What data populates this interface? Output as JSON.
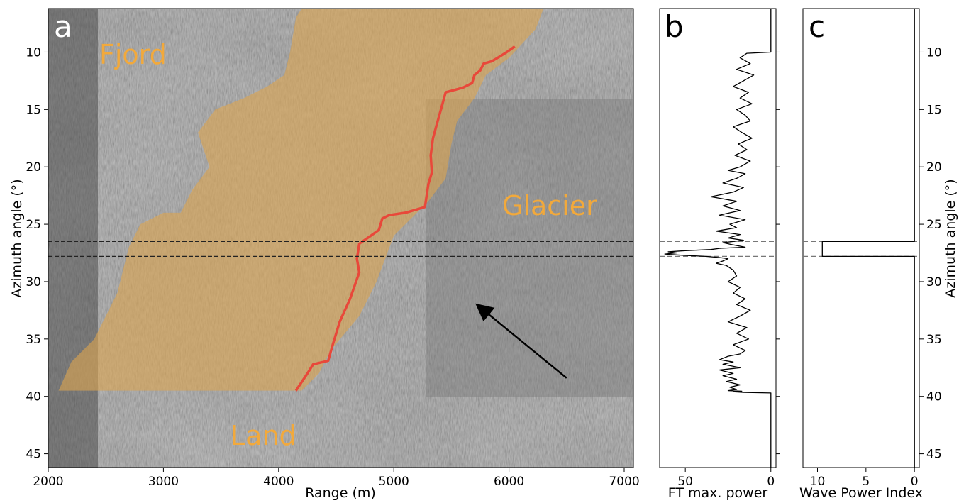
{
  "chart_data": [
    {
      "panel": "a",
      "type": "image",
      "xlabel": "Range (m)",
      "ylabel": "Azimuth angle (°)",
      "xlim": [
        2000,
        7080
      ],
      "ylim": [
        46.2,
        6.2
      ],
      "xticks": [
        2000,
        3000,
        4000,
        5000,
        6000,
        7000
      ],
      "yticks": [
        10,
        15,
        20,
        25,
        30,
        35,
        40,
        45
      ],
      "region_labels": [
        "Fjord",
        "Glacier",
        "Land"
      ],
      "colors": {
        "shading": "#dca450",
        "terminus": "#e8483a",
        "label": "#f2a93b"
      },
      "fjord_region": [
        [
          2090,
          39.5
        ],
        [
          2200,
          37.0
        ],
        [
          2400,
          35.0
        ],
        [
          2600,
          31.0
        ],
        [
          2700,
          27.0
        ],
        [
          2800,
          25.0
        ],
        [
          3000,
          24.0
        ],
        [
          3150,
          24.0
        ],
        [
          3250,
          22.0
        ],
        [
          3400,
          20.0
        ],
        [
          3300,
          17.0
        ],
        [
          3450,
          15.0
        ],
        [
          3700,
          14.0
        ],
        [
          3900,
          13.0
        ],
        [
          4050,
          12.0
        ],
        [
          4100,
          10.0
        ],
        [
          4150,
          7.0
        ],
        [
          4200,
          6.2
        ],
        [
          6300,
          6.2
        ],
        [
          6230,
          8.0
        ],
        [
          6000,
          10.5
        ],
        [
          5800,
          12.0
        ],
        [
          5700,
          14.0
        ],
        [
          5550,
          16.0
        ],
        [
          5500,
          18.0
        ],
        [
          5450,
          21.0
        ],
        [
          5300,
          23.0
        ],
        [
          5000,
          26.0
        ],
        [
          4850,
          30.0
        ],
        [
          4700,
          33.0
        ],
        [
          4450,
          36.0
        ],
        [
          4350,
          38.0
        ],
        [
          4200,
          39.5
        ]
      ],
      "terminus_line": [
        [
          6050,
          9.5
        ],
        [
          5980,
          10.0
        ],
        [
          5900,
          10.5
        ],
        [
          5850,
          10.8
        ],
        [
          5780,
          11.0
        ],
        [
          5750,
          11.6
        ],
        [
          5700,
          12.0
        ],
        [
          5680,
          12.7
        ],
        [
          5600,
          13.1
        ],
        [
          5450,
          13.5
        ],
        [
          5420,
          14.6
        ],
        [
          5370,
          16.4
        ],
        [
          5340,
          17.5
        ],
        [
          5320,
          19.0
        ],
        [
          5330,
          20.5
        ],
        [
          5300,
          21.5
        ],
        [
          5270,
          23.5
        ],
        [
          5100,
          24.0
        ],
        [
          4960,
          24.2
        ],
        [
          4900,
          24.5
        ],
        [
          4870,
          25.5
        ],
        [
          4800,
          26.0
        ],
        [
          4700,
          26.7
        ],
        [
          4680,
          28.0
        ],
        [
          4700,
          29.2
        ],
        [
          4620,
          31.5
        ],
        [
          4530,
          33.5
        ],
        [
          4470,
          35.5
        ],
        [
          4430,
          36.9
        ],
        [
          4300,
          37.2
        ],
        [
          4250,
          38.0
        ],
        [
          4150,
          39.5
        ]
      ],
      "arrow": {
        "from": [
          6500,
          38.4
        ],
        "to": [
          5720,
          32.0
        ]
      },
      "dashed_lines": [
        26.5,
        27.8
      ]
    },
    {
      "panel": "b",
      "type": "line",
      "xlabel": "FT max. power",
      "xlim": [
        65,
        -3
      ],
      "ylim": [
        46.2,
        6.2
      ],
      "xticks": [
        50,
        0
      ],
      "dashed_lines": [
        26.5,
        27.8
      ],
      "series": [
        {
          "x": [
            0,
            0,
            14,
            18,
            12,
            20,
            10,
            16,
            22,
            13,
            18,
            11,
            20,
            15,
            12,
            22,
            17,
            11,
            19,
            14,
            21,
            12,
            18,
            25,
            15,
            20,
            28,
            16,
            22,
            35,
            20,
            28,
            18,
            30,
            15,
            24,
            20,
            32,
            18,
            25,
            16,
            28,
            22,
            15,
            30,
            35,
            50,
            60,
            55,
            62,
            52,
            38,
            30,
            25,
            28,
            32,
            26,
            22,
            20,
            25,
            18,
            22,
            15,
            20,
            12,
            18,
            25,
            14,
            20,
            13,
            22,
            15,
            18,
            25,
            30,
            22,
            28,
            18,
            30,
            22,
            28,
            20,
            26,
            18,
            24,
            20,
            25,
            17,
            22,
            16,
            0,
            0
          ],
          "y": [
            6.2,
            10.0,
            10.1,
            10.5,
            11.0,
            11.5,
            12.0,
            12.5,
            13.0,
            13.5,
            14.0,
            14.5,
            15.0,
            15.5,
            16.0,
            16.5,
            17.0,
            17.5,
            18.0,
            18.5,
            19.0,
            19.5,
            20.0,
            20.3,
            20.6,
            21.0,
            21.4,
            21.8,
            22.2,
            22.6,
            23.0,
            23.4,
            23.8,
            24.2,
            24.6,
            25.0,
            25.3,
            25.6,
            25.9,
            26.2,
            26.4,
            26.6,
            26.8,
            27.0,
            27.1,
            27.2,
            27.3,
            27.4,
            27.5,
            27.6,
            27.7,
            27.8,
            27.9,
            28.0,
            28.2,
            28.4,
            28.6,
            29.0,
            29.5,
            30.0,
            30.5,
            31.0,
            31.5,
            32.0,
            32.5,
            33.0,
            33.5,
            34.0,
            34.5,
            35.0,
            35.5,
            36.0,
            36.3,
            36.5,
            36.8,
            37.0,
            37.2,
            37.5,
            37.7,
            38.0,
            38.2,
            38.5,
            38.7,
            39.0,
            39.2,
            39.4,
            39.5,
            39.55,
            39.6,
            39.65,
            39.7,
            46.2
          ]
        }
      ]
    },
    {
      "panel": "c",
      "type": "line",
      "xlabel": "Wave Power Index",
      "ylabel": "Azimuth angle (°)",
      "xlim": [
        11.5,
        -0.5
      ],
      "ylim": [
        46.2,
        6.2
      ],
      "xticks": [
        10,
        5,
        0
      ],
      "yticks": [
        10,
        15,
        20,
        25,
        30,
        35,
        40,
        45
      ],
      "dashed_lines": [
        26.5,
        27.8
      ],
      "series": [
        {
          "x": [
            0,
            0,
            9.5,
            9.5,
            0,
            0
          ],
          "y": [
            6.2,
            26.5,
            26.5,
            27.8,
            27.8,
            46.2
          ]
        }
      ]
    }
  ],
  "panel_letters": [
    "a",
    "b",
    "c"
  ]
}
